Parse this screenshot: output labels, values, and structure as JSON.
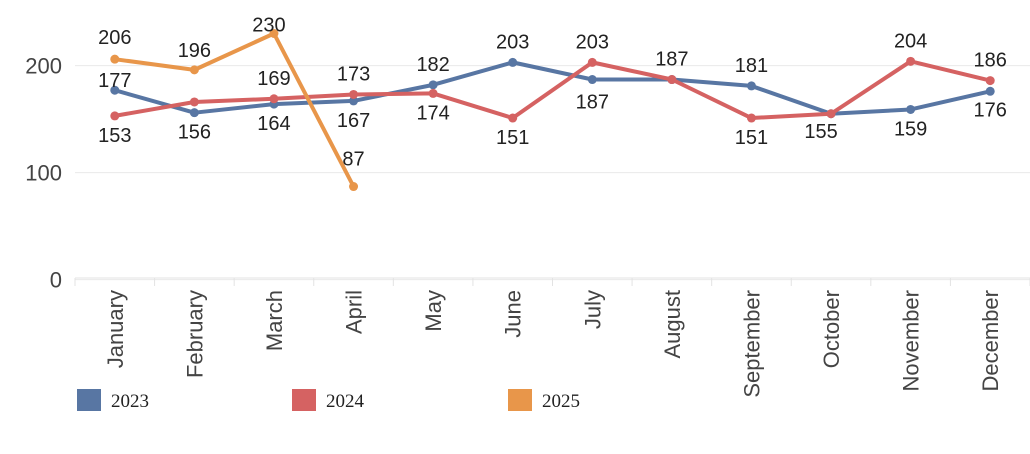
{
  "chart_data": {
    "type": "line",
    "title": "",
    "xlabel": "",
    "ylabel": "",
    "categories": [
      "January",
      "February",
      "March",
      "April",
      "May",
      "June",
      "July",
      "August",
      "September",
      "October",
      "November",
      "December"
    ],
    "ylim": [
      0,
      230
    ],
    "yticks": [
      0,
      100,
      200
    ],
    "grid": true,
    "legend_position": "bottom",
    "series": [
      {
        "name": "2023",
        "color": "#5876a3",
        "values": [
          177,
          156,
          164,
          167,
          182,
          203,
          187,
          187,
          181,
          155,
          159,
          176
        ]
      },
      {
        "name": "2024",
        "color": "#d56262",
        "values": [
          153,
          166,
          169,
          173,
          174,
          151,
          203,
          187,
          151,
          155,
          204,
          186
        ]
      },
      {
        "name": "2025",
        "color": "#e8964a",
        "values": [
          206,
          196,
          230,
          87,
          null,
          null,
          null,
          null,
          null,
          null,
          null,
          null
        ]
      }
    ],
    "data_labels": [
      {
        "series": "2025",
        "category": "January",
        "text": "206"
      },
      {
        "series": "2023",
        "category": "January",
        "text": "177"
      },
      {
        "series": "2024",
        "category": "January",
        "text": "153"
      },
      {
        "series": "2025",
        "category": "February",
        "text": "196"
      },
      {
        "series": "2023",
        "category": "February",
        "text": "156"
      },
      {
        "series": "2025",
        "category": "March",
        "text": "230"
      },
      {
        "series": "2024",
        "category": "March",
        "text": "169"
      },
      {
        "series": "2023",
        "category": "March",
        "text": "164"
      },
      {
        "series": "2024",
        "category": "April",
        "text": "173"
      },
      {
        "series": "2023",
        "category": "April",
        "text": "167"
      },
      {
        "series": "2025",
        "category": "April",
        "text": "87"
      },
      {
        "series": "2023",
        "category": "May",
        "text": "182"
      },
      {
        "series": "2024",
        "category": "May",
        "text": "174"
      },
      {
        "series": "2023",
        "category": "June",
        "text": "203"
      },
      {
        "series": "2024",
        "category": "June",
        "text": "151"
      },
      {
        "series": "2024",
        "category": "July",
        "text": "203"
      },
      {
        "series": "2023",
        "category": "July",
        "text": "187"
      },
      {
        "series": "2023",
        "category": "August",
        "text": "187"
      },
      {
        "series": "2023",
        "category": "September",
        "text": "181"
      },
      {
        "series": "2024",
        "category": "September",
        "text": "151"
      },
      {
        "series": "2023",
        "category": "October",
        "text": "155"
      },
      {
        "series": "2024",
        "category": "November",
        "text": "204"
      },
      {
        "series": "2023",
        "category": "November",
        "text": "159"
      },
      {
        "series": "2024",
        "category": "December",
        "text": "186"
      },
      {
        "series": "2023",
        "category": "December",
        "text": "176"
      }
    ]
  }
}
